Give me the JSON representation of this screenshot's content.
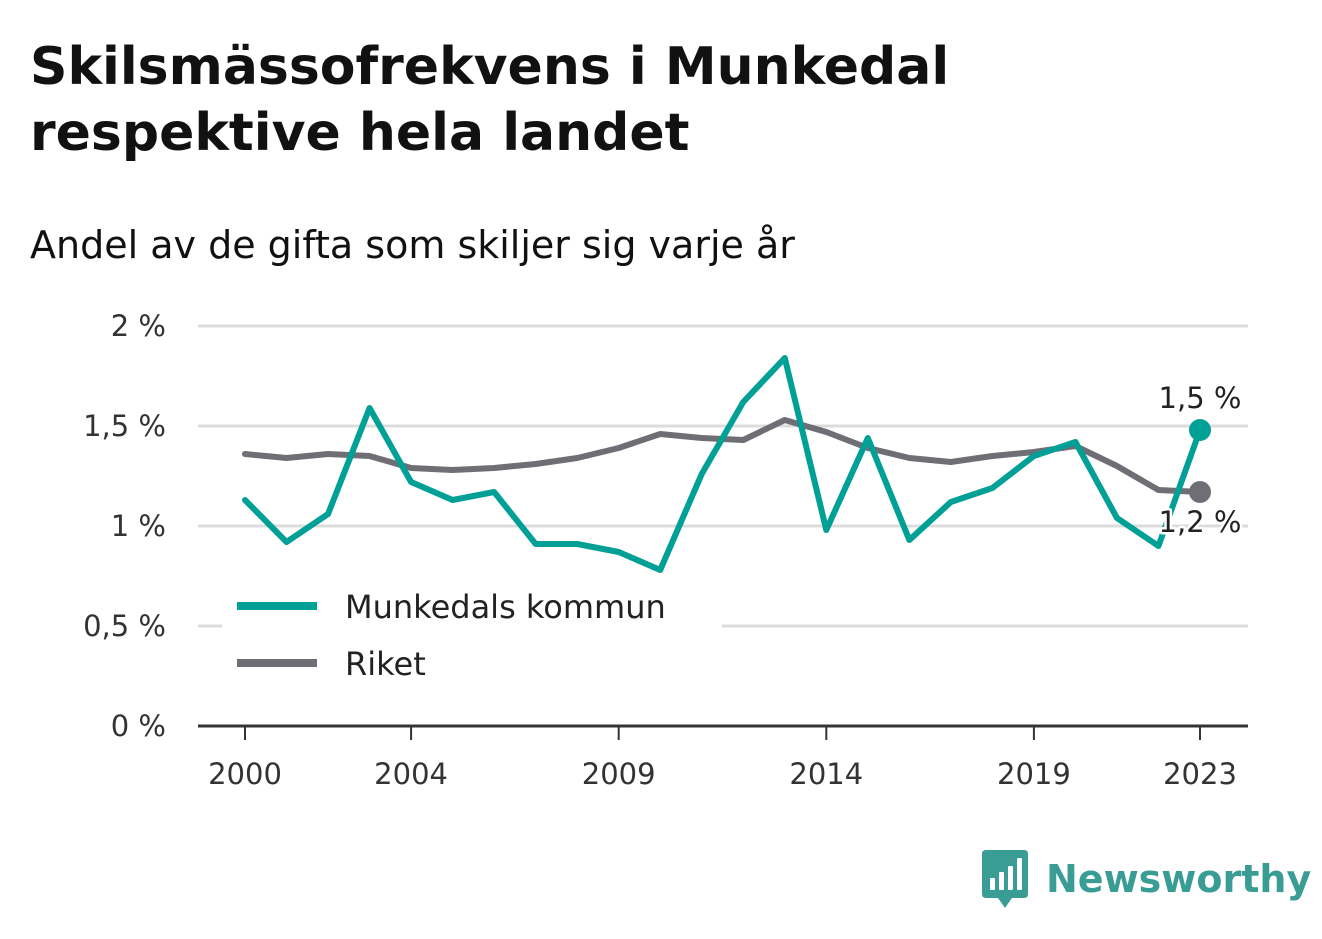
{
  "header": {
    "title": "Skilsmässofrekvens i Munkedal respektive hela landet",
    "subtitle": "Andel av de gifta som skiljer sig varje år"
  },
  "brand": {
    "name": "Newsworthy",
    "icon": "newsworthy-logo-icon",
    "color": "#3a9d95"
  },
  "chart_data": {
    "type": "line",
    "title": "Skilsmässofrekvens i Munkedal respektive hela landet",
    "subtitle": "Andel av de gifta som skiljer sig varje år",
    "x": [
      2000,
      2001,
      2002,
      2003,
      2004,
      2005,
      2006,
      2007,
      2008,
      2009,
      2010,
      2011,
      2012,
      2013,
      2014,
      2015,
      2016,
      2017,
      2018,
      2019,
      2020,
      2021,
      2022,
      2023
    ],
    "series": [
      {
        "name": "Munkedals kommun",
        "color": "#00a096",
        "values": [
          1.13,
          0.92,
          1.06,
          1.59,
          1.22,
          1.13,
          1.17,
          0.91,
          0.91,
          0.87,
          0.78,
          1.26,
          1.62,
          1.84,
          0.98,
          1.44,
          0.93,
          1.12,
          1.19,
          1.35,
          1.42,
          1.04,
          0.9,
          1.48
        ]
      },
      {
        "name": "Riket",
        "color": "#6e6e74",
        "values": [
          1.36,
          1.34,
          1.36,
          1.35,
          1.29,
          1.28,
          1.29,
          1.31,
          1.34,
          1.39,
          1.46,
          1.44,
          1.43,
          1.53,
          1.47,
          1.39,
          1.34,
          1.32,
          1.35,
          1.37,
          1.4,
          1.3,
          1.18,
          1.17
        ]
      }
    ],
    "end_labels": [
      "1,5 %",
      "1,2 %"
    ],
    "y_ticks": [
      0,
      0.5,
      1,
      1.5,
      2
    ],
    "y_tick_labels": [
      "0 %",
      "0,5 %",
      "1 %",
      "1,5 %",
      "2 %"
    ],
    "x_ticks": [
      2000,
      2004,
      2009,
      2014,
      2019,
      2023
    ],
    "x_tick_labels": [
      "2000",
      "2004",
      "2009",
      "2014",
      "2019",
      "2023"
    ],
    "ylim": [
      0,
      2
    ],
    "xlim": [
      2000,
      2023
    ],
    "grid": true,
    "legend_position": "bottom-left"
  }
}
